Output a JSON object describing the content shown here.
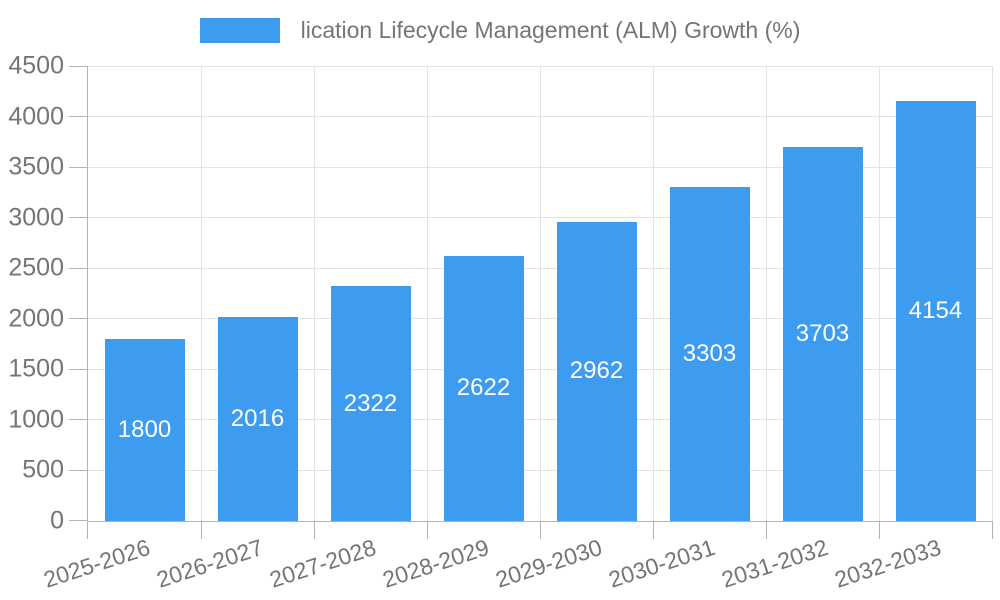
{
  "chart_data": {
    "type": "bar",
    "title": "lication Lifecycle Management (ALM) Growth (%)",
    "categories": [
      "2025-2026",
      "2026-2027",
      "2027-2028",
      "2028-2029",
      "2029-2030",
      "2030-2031",
      "2031-2032",
      "2032-2033"
    ],
    "values": [
      1800,
      2016,
      2322,
      2622,
      2962,
      3303,
      3703,
      4154
    ],
    "value_labels": [
      "1800",
      "2016",
      "2322",
      "2622",
      "2962",
      "3303",
      "3703",
      "4154"
    ],
    "ytick_labels": [
      "0",
      "500",
      "1000",
      "1500",
      "2000",
      "2500",
      "3000",
      "3500",
      "4000",
      "4500"
    ],
    "ylim": [
      0,
      4500
    ],
    "ytick_step": 500,
    "xlabel": "",
    "ylabel": "",
    "legend_position": "top-center",
    "grid": true,
    "x_label_rotation_deg": -18,
    "colors": {
      "bar": "#3d9bf0",
      "text": "#757575",
      "grid": "#e3e3e3",
      "axis_line": "#b3b3b3",
      "value_label": "#ffffff"
    }
  }
}
